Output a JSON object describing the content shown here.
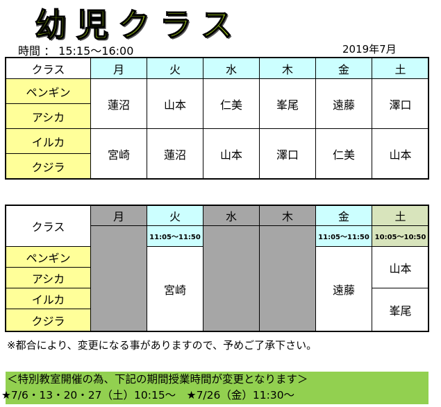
{
  "title": "幼児クラス",
  "time_label": "時間 ： 15:15〜16:00",
  "month": "2019年7月",
  "class_header": "クラス",
  "days": [
    "月",
    "火",
    "水",
    "木",
    "金",
    "土"
  ],
  "classes": [
    "ペンギン",
    "アシカ",
    "イルカ",
    "クジラ"
  ],
  "table1": {
    "group1": [
      "蓮沼",
      "山本",
      "仁美",
      "峯尾",
      "遠藤",
      "澤口"
    ],
    "group2": [
      "宮崎",
      "蓮沼",
      "山本",
      "澤口",
      "仁美",
      "山本"
    ]
  },
  "table2": {
    "tue_time": "11:05〜11:50",
    "fri_time": "11:05〜11:50",
    "sat_time": "10:05〜10:50",
    "tue_teacher": "宮崎",
    "fri_teacher": "遠藤",
    "sat_teacher_1": "山本",
    "sat_teacher_2": "峯尾"
  },
  "note": "※都合により、変更になる事がありますので、予めご了承下さい。",
  "banner": {
    "line1": "＜特別教室開催の為、下記の期間授業時間が変更となります＞",
    "line2": "★7/6・13・20・27（土）10:15〜　★7/26（金）11:30〜"
  },
  "colors": {
    "header": "#ccffff",
    "class_cell": "#ffff99",
    "closed": "#a6a6a6",
    "saturday": "#d8e4bc",
    "banner": "#92d050"
  }
}
